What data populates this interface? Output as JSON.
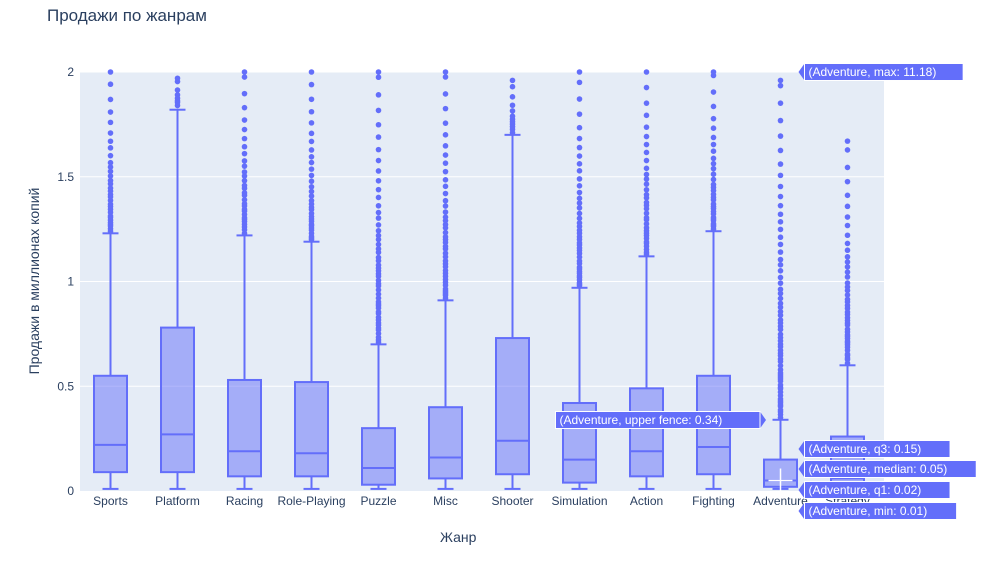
{
  "chart_data": {
    "type": "box",
    "title": "Продажи по жанрам",
    "xlabel": "Жанр",
    "ylabel": "Продажи в миллионах копий",
    "ylim": [
      0,
      2
    ],
    "yticks": [
      0,
      0.5,
      1,
      1.5,
      2
    ],
    "ytick_labels": [
      "0",
      "0.5",
      "1",
      "1.5",
      "2"
    ],
    "grid": true,
    "colors": {
      "box": "#636efa",
      "plot_bg": "#e5ecf6",
      "grid": "#ffffff",
      "text": "#2a3f5f"
    },
    "categories": [
      "Sports",
      "Platform",
      "Racing",
      "Role-Playing",
      "Puzzle",
      "Misc",
      "Shooter",
      "Simulation",
      "Action",
      "Fighting",
      "Adventure",
      "Strategy"
    ],
    "boxes": [
      {
        "name": "Sports",
        "min": 0.01,
        "q1": 0.09,
        "median": 0.22,
        "q3": 0.55,
        "upperfence": 1.23,
        "outliers_from": 1.24,
        "outliers_to": 2.0
      },
      {
        "name": "Platform",
        "min": 0.01,
        "q1": 0.09,
        "median": 0.27,
        "q3": 0.78,
        "upperfence": 1.82,
        "outliers_from": 1.84,
        "outliers_to": 1.97
      },
      {
        "name": "Racing",
        "min": 0.01,
        "q1": 0.07,
        "median": 0.19,
        "q3": 0.53,
        "upperfence": 1.22,
        "outliers_from": 1.23,
        "outliers_to": 2.0
      },
      {
        "name": "Role-Playing",
        "min": 0.01,
        "q1": 0.07,
        "median": 0.18,
        "q3": 0.52,
        "upperfence": 1.19,
        "outliers_from": 1.2,
        "outliers_to": 2.0
      },
      {
        "name": "Puzzle",
        "min": 0.01,
        "q1": 0.03,
        "median": 0.11,
        "q3": 0.3,
        "upperfence": 0.7,
        "outliers_from": 0.71,
        "outliers_to": 2.0
      },
      {
        "name": "Misc",
        "min": 0.01,
        "q1": 0.06,
        "median": 0.16,
        "q3": 0.4,
        "upperfence": 0.91,
        "outliers_from": 0.92,
        "outliers_to": 2.0
      },
      {
        "name": "Shooter",
        "min": 0.01,
        "q1": 0.08,
        "median": 0.24,
        "q3": 0.73,
        "upperfence": 1.7,
        "outliers_from": 1.71,
        "outliers_to": 1.96
      },
      {
        "name": "Simulation",
        "min": 0.01,
        "q1": 0.04,
        "median": 0.15,
        "q3": 0.42,
        "upperfence": 0.97,
        "outliers_from": 0.98,
        "outliers_to": 2.0
      },
      {
        "name": "Action",
        "min": 0.01,
        "q1": 0.07,
        "median": 0.19,
        "q3": 0.49,
        "upperfence": 1.12,
        "outliers_from": 1.13,
        "outliers_to": 2.0
      },
      {
        "name": "Fighting",
        "min": 0.01,
        "q1": 0.08,
        "median": 0.21,
        "q3": 0.55,
        "upperfence": 1.24,
        "outliers_from": 1.25,
        "outliers_to": 2.0
      },
      {
        "name": "Adventure",
        "min": 0.01,
        "q1": 0.02,
        "median": 0.05,
        "q3": 0.15,
        "upperfence": 0.34,
        "outliers_from": 0.35,
        "outliers_to": 1.96
      },
      {
        "name": "Strategy",
        "min": 0.01,
        "q1": 0.02,
        "median": 0.06,
        "q3": 0.26,
        "upperfence": 0.6,
        "outliers_from": 0.61,
        "outliers_to": 1.67
      }
    ],
    "hover_labels": [
      {
        "text": "(Adventure, max: 11.18)"
      },
      {
        "text": "(Adventure, upper fence: 0.34)"
      },
      {
        "text": "(Adventure, q3: 0.15)"
      },
      {
        "text": "(Adventure, median: 0.05)"
      },
      {
        "text": "(Adventure, q1: 0.02)"
      },
      {
        "text": "(Adventure, min: 0.01)"
      }
    ]
  }
}
